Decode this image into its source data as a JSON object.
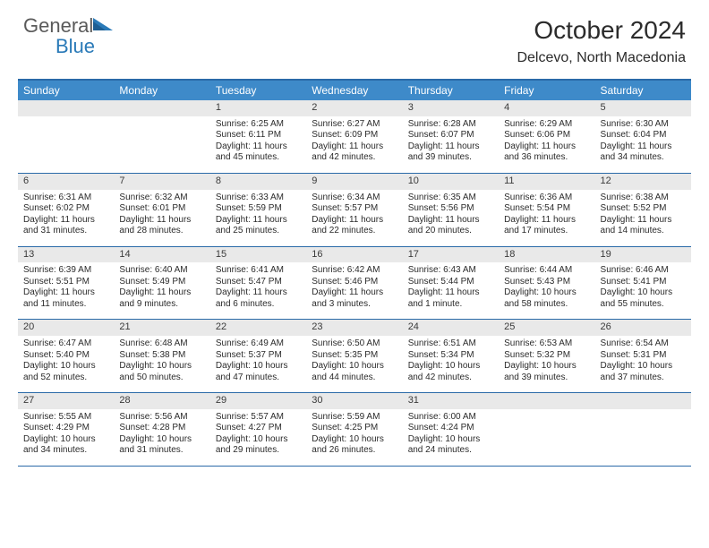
{
  "brand": {
    "part1": "General",
    "part2": "Blue"
  },
  "title": "October 2024",
  "location": "Delcevo, North Macedonia",
  "dow": [
    "Sunday",
    "Monday",
    "Tuesday",
    "Wednesday",
    "Thursday",
    "Friday",
    "Saturday"
  ],
  "colors": {
    "header_bar": "#3e8ac9",
    "rule": "#2a6aa8",
    "daynum_bg": "#e9e9e9",
    "text": "#2b2b2b",
    "logo_gray": "#5a5a5a",
    "logo_blue": "#2a7ab8"
  },
  "weeks": [
    [
      {
        "n": "",
        "blank": true
      },
      {
        "n": "",
        "blank": true
      },
      {
        "n": "1",
        "sunrise": "Sunrise: 6:25 AM",
        "sunset": "Sunset: 6:11 PM",
        "daylight": "Daylight: 11 hours and 45 minutes."
      },
      {
        "n": "2",
        "sunrise": "Sunrise: 6:27 AM",
        "sunset": "Sunset: 6:09 PM",
        "daylight": "Daylight: 11 hours and 42 minutes."
      },
      {
        "n": "3",
        "sunrise": "Sunrise: 6:28 AM",
        "sunset": "Sunset: 6:07 PM",
        "daylight": "Daylight: 11 hours and 39 minutes."
      },
      {
        "n": "4",
        "sunrise": "Sunrise: 6:29 AM",
        "sunset": "Sunset: 6:06 PM",
        "daylight": "Daylight: 11 hours and 36 minutes."
      },
      {
        "n": "5",
        "sunrise": "Sunrise: 6:30 AM",
        "sunset": "Sunset: 6:04 PM",
        "daylight": "Daylight: 11 hours and 34 minutes."
      }
    ],
    [
      {
        "n": "6",
        "sunrise": "Sunrise: 6:31 AM",
        "sunset": "Sunset: 6:02 PM",
        "daylight": "Daylight: 11 hours and 31 minutes."
      },
      {
        "n": "7",
        "sunrise": "Sunrise: 6:32 AM",
        "sunset": "Sunset: 6:01 PM",
        "daylight": "Daylight: 11 hours and 28 minutes."
      },
      {
        "n": "8",
        "sunrise": "Sunrise: 6:33 AM",
        "sunset": "Sunset: 5:59 PM",
        "daylight": "Daylight: 11 hours and 25 minutes."
      },
      {
        "n": "9",
        "sunrise": "Sunrise: 6:34 AM",
        "sunset": "Sunset: 5:57 PM",
        "daylight": "Daylight: 11 hours and 22 minutes."
      },
      {
        "n": "10",
        "sunrise": "Sunrise: 6:35 AM",
        "sunset": "Sunset: 5:56 PM",
        "daylight": "Daylight: 11 hours and 20 minutes."
      },
      {
        "n": "11",
        "sunrise": "Sunrise: 6:36 AM",
        "sunset": "Sunset: 5:54 PM",
        "daylight": "Daylight: 11 hours and 17 minutes."
      },
      {
        "n": "12",
        "sunrise": "Sunrise: 6:38 AM",
        "sunset": "Sunset: 5:52 PM",
        "daylight": "Daylight: 11 hours and 14 minutes."
      }
    ],
    [
      {
        "n": "13",
        "sunrise": "Sunrise: 6:39 AM",
        "sunset": "Sunset: 5:51 PM",
        "daylight": "Daylight: 11 hours and 11 minutes."
      },
      {
        "n": "14",
        "sunrise": "Sunrise: 6:40 AM",
        "sunset": "Sunset: 5:49 PM",
        "daylight": "Daylight: 11 hours and 9 minutes."
      },
      {
        "n": "15",
        "sunrise": "Sunrise: 6:41 AM",
        "sunset": "Sunset: 5:47 PM",
        "daylight": "Daylight: 11 hours and 6 minutes."
      },
      {
        "n": "16",
        "sunrise": "Sunrise: 6:42 AM",
        "sunset": "Sunset: 5:46 PM",
        "daylight": "Daylight: 11 hours and 3 minutes."
      },
      {
        "n": "17",
        "sunrise": "Sunrise: 6:43 AM",
        "sunset": "Sunset: 5:44 PM",
        "daylight": "Daylight: 11 hours and 1 minute."
      },
      {
        "n": "18",
        "sunrise": "Sunrise: 6:44 AM",
        "sunset": "Sunset: 5:43 PM",
        "daylight": "Daylight: 10 hours and 58 minutes."
      },
      {
        "n": "19",
        "sunrise": "Sunrise: 6:46 AM",
        "sunset": "Sunset: 5:41 PM",
        "daylight": "Daylight: 10 hours and 55 minutes."
      }
    ],
    [
      {
        "n": "20",
        "sunrise": "Sunrise: 6:47 AM",
        "sunset": "Sunset: 5:40 PM",
        "daylight": "Daylight: 10 hours and 52 minutes."
      },
      {
        "n": "21",
        "sunrise": "Sunrise: 6:48 AM",
        "sunset": "Sunset: 5:38 PM",
        "daylight": "Daylight: 10 hours and 50 minutes."
      },
      {
        "n": "22",
        "sunrise": "Sunrise: 6:49 AM",
        "sunset": "Sunset: 5:37 PM",
        "daylight": "Daylight: 10 hours and 47 minutes."
      },
      {
        "n": "23",
        "sunrise": "Sunrise: 6:50 AM",
        "sunset": "Sunset: 5:35 PM",
        "daylight": "Daylight: 10 hours and 44 minutes."
      },
      {
        "n": "24",
        "sunrise": "Sunrise: 6:51 AM",
        "sunset": "Sunset: 5:34 PM",
        "daylight": "Daylight: 10 hours and 42 minutes."
      },
      {
        "n": "25",
        "sunrise": "Sunrise: 6:53 AM",
        "sunset": "Sunset: 5:32 PM",
        "daylight": "Daylight: 10 hours and 39 minutes."
      },
      {
        "n": "26",
        "sunrise": "Sunrise: 6:54 AM",
        "sunset": "Sunset: 5:31 PM",
        "daylight": "Daylight: 10 hours and 37 minutes."
      }
    ],
    [
      {
        "n": "27",
        "sunrise": "Sunrise: 5:55 AM",
        "sunset": "Sunset: 4:29 PM",
        "daylight": "Daylight: 10 hours and 34 minutes."
      },
      {
        "n": "28",
        "sunrise": "Sunrise: 5:56 AM",
        "sunset": "Sunset: 4:28 PM",
        "daylight": "Daylight: 10 hours and 31 minutes."
      },
      {
        "n": "29",
        "sunrise": "Sunrise: 5:57 AM",
        "sunset": "Sunset: 4:27 PM",
        "daylight": "Daylight: 10 hours and 29 minutes."
      },
      {
        "n": "30",
        "sunrise": "Sunrise: 5:59 AM",
        "sunset": "Sunset: 4:25 PM",
        "daylight": "Daylight: 10 hours and 26 minutes."
      },
      {
        "n": "31",
        "sunrise": "Sunrise: 6:00 AM",
        "sunset": "Sunset: 4:24 PM",
        "daylight": "Daylight: 10 hours and 24 minutes."
      },
      {
        "n": "",
        "blank": true
      },
      {
        "n": "",
        "blank": true
      }
    ]
  ]
}
